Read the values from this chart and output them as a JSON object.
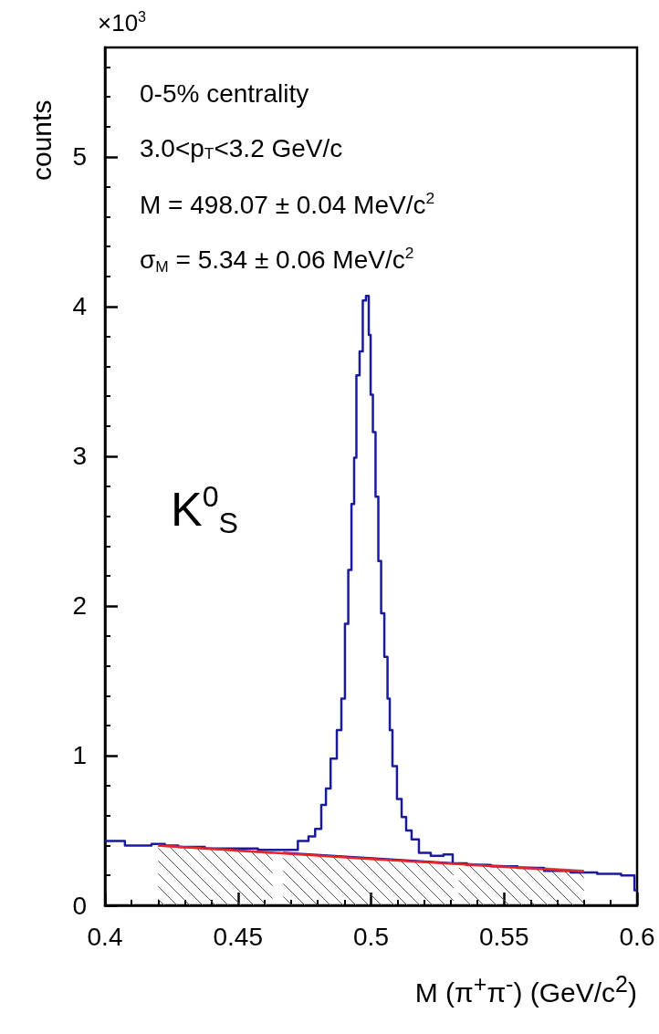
{
  "chart_data": {
    "type": "step",
    "xlabel": "M (π$^{+}$π$^{-}$) (GeV/c$^{2}$)",
    "ylabel": "counts",
    "annotations": [
      "×10$^{3}$",
      "0-5% centrality",
      "3.0<p$_{T}$<3.2 GeV/c",
      "M = 498.07 ± 0.04 MeV/c$^{2}$",
      "σ$_{M}$ = 5.34 ± 0.06 MeV/c$^{2}$",
      "K$^{0}$$_{S}$"
    ],
    "xlim": [
      0.4,
      0.6
    ],
    "xticks": [
      0.4,
      0.45,
      0.5,
      0.55,
      0.6
    ],
    "ylim": [
      0,
      5.73
    ],
    "yticks": [
      0,
      1,
      2,
      3,
      4,
      5
    ],
    "series": [
      {
        "type": "area",
        "color": "#808080",
        "x": [
          0.42,
          0.463
        ],
        "values": [
          0.4,
          0.35
        ]
      },
      {
        "type": "area",
        "color": "#1a1a9c",
        "x": [
          0.467,
          0.531
        ],
        "values": [
          0.35,
          0.28
        ]
      },
      {
        "type": "area",
        "color": "#808080",
        "x": [
          0.533,
          0.58
        ],
        "values": [
          0.28,
          0.23
        ]
      },
      {
        "color": "#1a1a9c",
        "x": [
          0.4,
          0.405,
          0.41,
          0.415,
          0.42,
          0.425,
          0.43,
          0.435,
          0.44,
          0.445,
          0.45,
          0.455,
          0.46,
          0.465,
          0.47,
          0.475,
          0.478,
          0.48,
          0.4826,
          0.4835,
          0.4861,
          0.4882,
          0.4895,
          0.4909,
          0.492,
          0.4933,
          0.494,
          0.495,
          0.4964,
          0.4974,
          0.4988,
          0.4995,
          0.5002,
          0.5012,
          0.5022,
          0.5033,
          0.5043,
          0.5057,
          0.5067,
          0.5074,
          0.5087,
          0.5108,
          0.5122,
          0.5142,
          0.5163,
          0.5197,
          0.5252,
          0.5293,
          0.5321,
          0.54,
          0.55,
          0.56,
          0.57,
          0.58,
          0.59,
          0.598,
          0.6
        ],
        "values": [
          0.43,
          0.43,
          0.4,
          0.4,
          0.41,
          0.4,
          0.39,
          0.39,
          0.38,
          0.38,
          0.38,
          0.38,
          0.37,
          0.37,
          0.37,
          0.43,
          0.46,
          0.51,
          0.67,
          0.78,
          0.98,
          1.17,
          1.38,
          1.88,
          2.24,
          2.68,
          2.99,
          3.54,
          3.7,
          4.04,
          4.07,
          3.81,
          3.41,
          3.16,
          2.73,
          2.3,
          1.95,
          1.66,
          1.38,
          1.17,
          0.93,
          0.71,
          0.59,
          0.5,
          0.44,
          0.35,
          0.33,
          0.34,
          0.28,
          0.27,
          0.26,
          0.25,
          0.23,
          0.22,
          0.21,
          0.2,
          0.1
        ]
      },
      {
        "type": "line",
        "color": "#ee2222",
        "x": [
          0.42,
          0.5,
          0.58
        ],
        "values": [
          0.4,
          0.31,
          0.225
        ]
      }
    ]
  }
}
